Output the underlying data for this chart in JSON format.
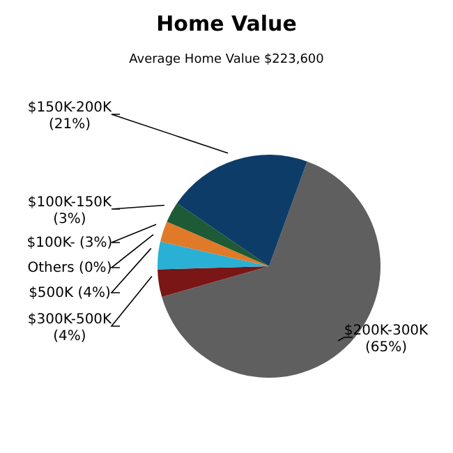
{
  "chart_data": {
    "type": "pie",
    "title": "Home Value",
    "subtitle": "Average Home Value  $223,600",
    "categories": [
      "$200K-300K",
      "$300K-500K",
      "$500K",
      "Others",
      "$100K-",
      "$100K-150K",
      "$150K-200K"
    ],
    "values": [
      65,
      4,
      4,
      0,
      3,
      3,
      21
    ],
    "value_labels": [
      "(65%)",
      "(4%)",
      "(4%)",
      "(0%)",
      "(3%)",
      "(3%)",
      "(21%)"
    ],
    "colors": [
      "#5f5f5f",
      "#7a1616",
      "#2ab0d4",
      "#8a8a8a",
      "#e07a28",
      "#1e5a36",
      "#0e3c68"
    ],
    "legend": false
  }
}
